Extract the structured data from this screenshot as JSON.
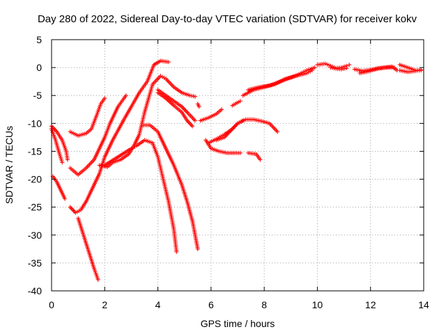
{
  "chart_data": {
    "type": "scatter",
    "title": "Day 280 of 2022, Sidereal Day-to-day VTEC variation (SDTVAR) for receiver kokv",
    "xlabel": "GPS time / hours",
    "ylabel": "SDTVAR / TECUs",
    "xlim": [
      0,
      14
    ],
    "ylim": [
      -40,
      5
    ],
    "xticks": [
      "0",
      "2",
      "4",
      "6",
      "8",
      "10",
      "12",
      "14"
    ],
    "yticks": [
      "5",
      "0",
      "-5",
      "-10",
      "-15",
      "-20",
      "-25",
      "-30",
      "-35",
      "-40"
    ],
    "grid": true,
    "marker": "+",
    "color": "#ff0000",
    "series": [
      {
        "points": [
          [
            0.0,
            -10.5
          ],
          [
            0.2,
            -11.5
          ],
          [
            0.4,
            -13.0
          ],
          [
            0.55,
            -15.0
          ],
          [
            0.6,
            -16.5
          ]
        ]
      },
      {
        "points": [
          [
            0.0,
            -11.0
          ],
          [
            0.15,
            -13.0
          ],
          [
            0.3,
            -15.5
          ],
          [
            0.4,
            -17.0
          ]
        ]
      },
      {
        "points": [
          [
            0.05,
            -19.5
          ],
          [
            0.2,
            -20.5
          ],
          [
            0.35,
            -22.0
          ],
          [
            0.5,
            -23.5
          ]
        ]
      },
      {
        "points": [
          [
            0.7,
            -11.5
          ],
          [
            1.0,
            -12.2
          ],
          [
            1.3,
            -11.8
          ],
          [
            1.5,
            -11.0
          ],
          [
            1.7,
            -8.5
          ],
          [
            1.85,
            -6.5
          ],
          [
            2.0,
            -5.5
          ]
        ]
      },
      {
        "points": [
          [
            0.7,
            -18.0
          ],
          [
            1.0,
            -19.2
          ],
          [
            1.3,
            -18.0
          ],
          [
            1.6,
            -16.5
          ],
          [
            1.8,
            -14.5
          ],
          [
            2.0,
            -12.5
          ],
          [
            2.2,
            -10.0
          ],
          [
            2.5,
            -7.0
          ],
          [
            2.8,
            -5.0
          ]
        ]
      },
      {
        "points": [
          [
            0.7,
            -25.0
          ],
          [
            0.9,
            -26.0
          ],
          [
            1.1,
            -25.5
          ],
          [
            1.3,
            -24.0
          ],
          [
            1.5,
            -22.0
          ],
          [
            1.8,
            -19.0
          ],
          [
            2.0,
            -16.0
          ],
          [
            2.3,
            -13.0
          ],
          [
            2.7,
            -9.5
          ],
          [
            3.0,
            -7.0
          ],
          [
            3.3,
            -4.5
          ],
          [
            3.6,
            -2.5
          ],
          [
            3.85,
            0.5
          ],
          [
            4.1,
            1.2
          ],
          [
            4.4,
            1.0
          ]
        ]
      },
      {
        "points": [
          [
            1.0,
            -27.0
          ],
          [
            1.2,
            -30.0
          ],
          [
            1.4,
            -33.0
          ],
          [
            1.6,
            -36.0
          ],
          [
            1.75,
            -38.0
          ]
        ]
      },
      {
        "points": [
          [
            1.8,
            -17.5
          ],
          [
            2.1,
            -17.8
          ],
          [
            2.3,
            -17.0
          ],
          [
            2.6,
            -16.5
          ],
          [
            2.9,
            -15.5
          ],
          [
            3.1,
            -14.0
          ],
          [
            3.3,
            -12.0
          ],
          [
            3.5,
            -8.0
          ],
          [
            3.8,
            -3.0
          ],
          [
            4.1,
            -1.5
          ],
          [
            4.3,
            -2.0
          ],
          [
            4.6,
            -3.5
          ],
          [
            4.9,
            -4.5
          ],
          [
            5.2,
            -5.0
          ],
          [
            5.4,
            -5.2
          ]
        ]
      },
      {
        "points": [
          [
            2.0,
            -17.5
          ],
          [
            2.5,
            -16.0
          ],
          [
            3.0,
            -14.5
          ],
          [
            3.2,
            -14.0
          ],
          [
            3.5,
            -13.0
          ],
          [
            3.8,
            -13.5
          ],
          [
            4.0,
            -16.0
          ],
          [
            4.2,
            -20.0
          ],
          [
            4.4,
            -24.0
          ],
          [
            4.6,
            -29.0
          ],
          [
            4.7,
            -33.0
          ]
        ]
      },
      {
        "points": [
          [
            3.4,
            -10.3
          ],
          [
            3.7,
            -10.3
          ],
          [
            4.0,
            -11.5
          ],
          [
            4.3,
            -14.5
          ],
          [
            4.6,
            -17.5
          ],
          [
            4.9,
            -21.0
          ],
          [
            5.1,
            -24.0
          ],
          [
            5.3,
            -27.5
          ],
          [
            5.5,
            -32.5
          ]
        ]
      },
      {
        "points": [
          [
            4.0,
            -4.5
          ],
          [
            4.3,
            -5.5
          ],
          [
            4.6,
            -6.8
          ],
          [
            4.9,
            -8.0
          ],
          [
            5.1,
            -9.5
          ],
          [
            5.3,
            -10.5
          ]
        ]
      },
      {
        "points": [
          [
            4.0,
            -4.0
          ],
          [
            4.3,
            -5.0
          ],
          [
            4.6,
            -6.0
          ],
          [
            4.9,
            -7.0
          ],
          [
            5.1,
            -8.0
          ],
          [
            5.4,
            -9.5
          ]
        ]
      },
      {
        "points": [
          [
            5.5,
            -6.5
          ],
          [
            5.55,
            -7.0
          ]
        ]
      },
      {
        "points": [
          [
            5.6,
            -9.5
          ],
          [
            5.9,
            -9.0
          ],
          [
            6.2,
            -8.3
          ],
          [
            6.4,
            -7.5
          ]
        ]
      },
      {
        "points": [
          [
            5.8,
            -13.0
          ],
          [
            6.0,
            -14.5
          ],
          [
            6.3,
            -15.0
          ],
          [
            6.6,
            -15.3
          ],
          [
            6.9,
            -15.3
          ],
          [
            7.1,
            -15.3
          ]
        ]
      },
      {
        "points": [
          [
            7.4,
            -15.3
          ],
          [
            7.7,
            -15.5
          ],
          [
            7.85,
            -16.5
          ]
        ]
      },
      {
        "points": [
          [
            5.9,
            -13.5
          ],
          [
            6.2,
            -12.8
          ],
          [
            6.5,
            -12.0
          ],
          [
            6.8,
            -11.0
          ],
          [
            7.0,
            -10.0
          ],
          [
            7.2,
            -9.5
          ]
        ]
      },
      {
        "points": [
          [
            6.2,
            -13.0
          ],
          [
            6.5,
            -12.5
          ],
          [
            6.8,
            -11.0
          ],
          [
            7.0,
            -10.0
          ],
          [
            7.3,
            -9.3
          ],
          [
            7.6,
            -9.3
          ],
          [
            7.9,
            -9.6
          ],
          [
            8.2,
            -10.0
          ],
          [
            8.5,
            -11.5
          ]
        ]
      },
      {
        "points": [
          [
            6.8,
            -6.8
          ],
          [
            7.1,
            -6.0
          ]
        ]
      },
      {
        "points": [
          [
            7.2,
            -5.0
          ],
          [
            7.6,
            -4.0
          ],
          [
            8.0,
            -3.5
          ],
          [
            8.4,
            -3.0
          ],
          [
            8.8,
            -2.0
          ],
          [
            9.2,
            -1.5
          ],
          [
            9.6,
            -1.0
          ],
          [
            9.8,
            -0.5
          ]
        ]
      },
      {
        "points": [
          [
            7.4,
            -4.0
          ],
          [
            7.8,
            -3.5
          ],
          [
            8.2,
            -3.2
          ],
          [
            8.6,
            -2.5
          ],
          [
            9.0,
            -1.8
          ],
          [
            9.3,
            -1.2
          ],
          [
            9.6,
            -0.5
          ],
          [
            9.9,
            0.0
          ]
        ]
      },
      {
        "points": [
          [
            10.0,
            0.5
          ],
          [
            10.3,
            0.7
          ],
          [
            10.5,
            0.3
          ],
          [
            10.7,
            -0.1
          ],
          [
            10.9,
            0.0
          ],
          [
            11.1,
            0.3
          ],
          [
            11.2,
            0.5
          ]
        ]
      },
      {
        "points": [
          [
            10.5,
            0.0
          ],
          [
            10.7,
            -0.2
          ],
          [
            10.9,
            -0.3
          ],
          [
            11.1,
            -0.1
          ]
        ]
      },
      {
        "points": [
          [
            11.4,
            -0.3
          ],
          [
            11.7,
            -0.6
          ],
          [
            12.0,
            -0.4
          ],
          [
            12.3,
            -0.1
          ],
          [
            12.6,
            0.0
          ],
          [
            12.9,
            0.0
          ]
        ]
      },
      {
        "points": [
          [
            11.6,
            -1.0
          ],
          [
            11.9,
            -0.7
          ],
          [
            12.2,
            -0.3
          ],
          [
            12.5,
            0.0
          ],
          [
            12.8,
            0.2
          ],
          [
            13.0,
            -0.5
          ]
        ]
      },
      {
        "points": [
          [
            13.1,
            0.5
          ],
          [
            13.4,
            0.0
          ],
          [
            13.7,
            -0.5
          ],
          [
            13.9,
            -0.5
          ]
        ]
      },
      {
        "points": [
          [
            13.1,
            -0.5
          ],
          [
            13.4,
            -0.8
          ],
          [
            13.7,
            -0.6
          ],
          [
            13.9,
            -0.4
          ]
        ]
      }
    ]
  }
}
